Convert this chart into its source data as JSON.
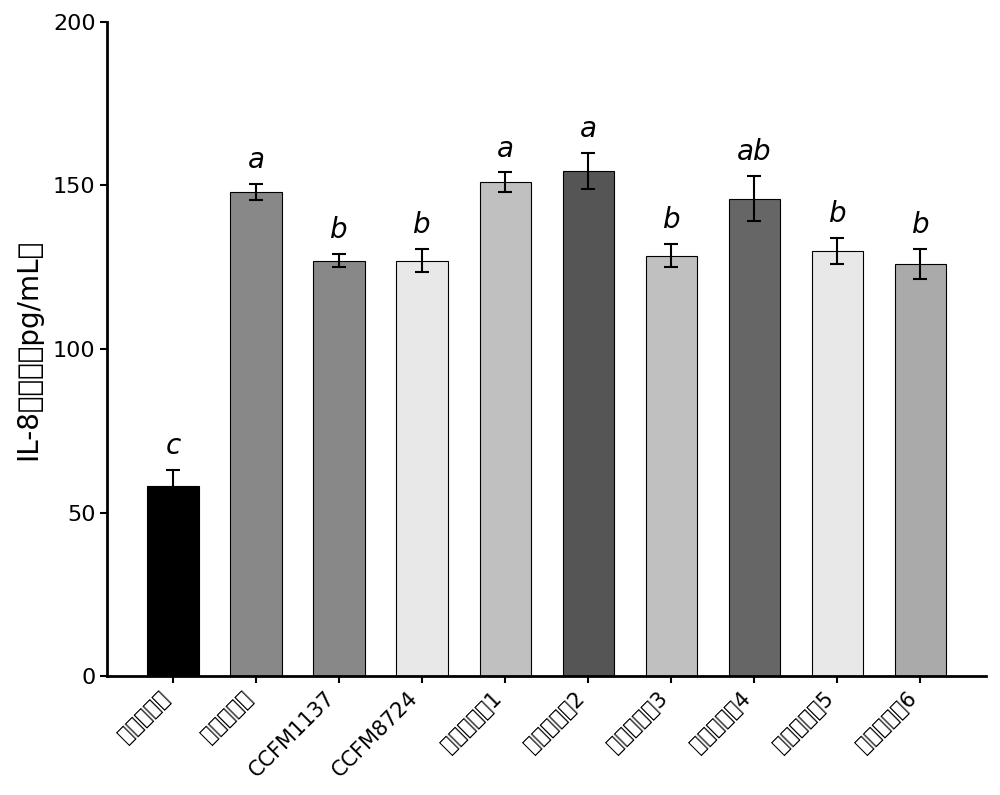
{
  "categories": [
    "空白对照组",
    "阴性对照组",
    "CCFM1137",
    "CCFM8724",
    "植物乳杆菌1",
    "植物乳杆菌2",
    "植物乳杆菌3",
    "植物乳杆菌4",
    "植物乳杆菌5",
    "植物乳杆菌6"
  ],
  "values": [
    58.0,
    148.0,
    127.0,
    127.0,
    151.0,
    154.5,
    128.5,
    146.0,
    130.0,
    126.0
  ],
  "errors": [
    5.0,
    2.5,
    2.0,
    3.5,
    3.0,
    5.5,
    3.5,
    7.0,
    4.0,
    4.5
  ],
  "bar_colors": [
    "#000000",
    "#888888",
    "#888888",
    "#e8e8e8",
    "#c0c0c0",
    "#555555",
    "#c0c0c0",
    "#666666",
    "#e8e8e8",
    "#aaaaaa"
  ],
  "significance": [
    "c",
    "a",
    "b",
    "b",
    "a",
    "a",
    "b",
    "ab",
    "b",
    "b"
  ],
  "ylabel": "IL-8含量／（pg/mL）",
  "ylim": [
    0,
    200
  ],
  "yticks": [
    0,
    50,
    100,
    150,
    200
  ],
  "sig_fontsize": 20,
  "ylabel_fontsize": 20,
  "tick_fontsize": 16,
  "xtick_fontsize": 15
}
